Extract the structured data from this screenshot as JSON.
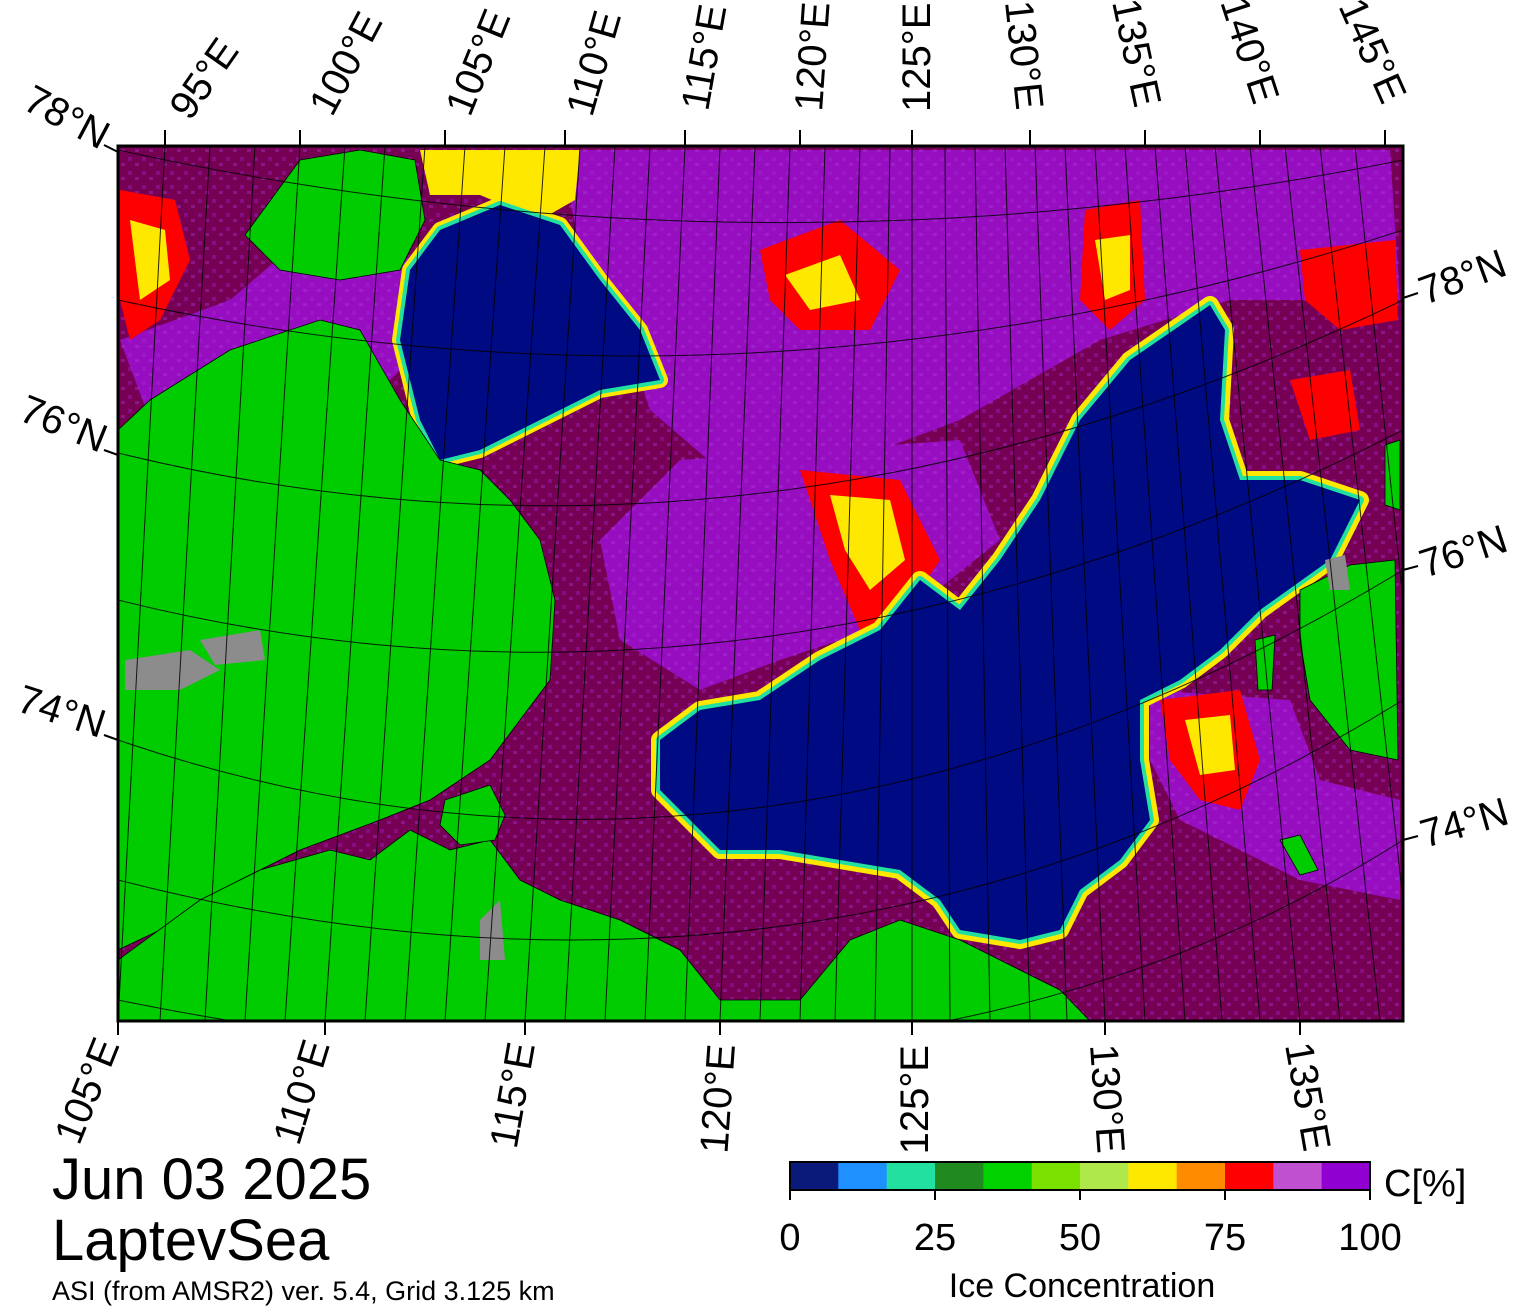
{
  "title": {
    "date": "Jun 03 2025",
    "region": "LaptevSea",
    "source": "ASI (from AMSR2) ver. 5.4,  Grid 3.125 km"
  },
  "axes": {
    "top_lon_labels": [
      "95°E",
      "100°E",
      "105°E",
      "110°E",
      "115°E",
      "120°E",
      "125°E",
      "130°E",
      "135°E",
      "140°E",
      "145°E"
    ],
    "bottom_lon_labels": [
      "105°E",
      "110°E",
      "115°E",
      "120°E",
      "125°E",
      "130°E",
      "135°E"
    ],
    "left_lat_labels": [
      "78°N",
      "76°N",
      "74°N"
    ],
    "right_lat_labels": [
      "78°N",
      "76°N",
      "74°N"
    ]
  },
  "colorbar": {
    "title": "Ice Concentration",
    "unit_label": "C[%]",
    "tick_labels": [
      "0",
      "25",
      "50",
      "75",
      "100"
    ],
    "colors": [
      "#0a1a7a",
      "#1e90ff",
      "#22e0a0",
      "#208a20",
      "#00d200",
      "#7ae000",
      "#aee84a",
      "#ffe800",
      "#ff8c00",
      "#ff0000",
      "#c050d0",
      "#9000d0"
    ]
  },
  "colors": {
    "land": "#00cc00",
    "fast_ice_gray": "#8c8c8c",
    "open_water": "#000a82",
    "ice_high": "#760054",
    "ice_violet": "#9a10cc",
    "marginal_yellow": "#ffe800",
    "marginal_red": "#ff0000"
  }
}
